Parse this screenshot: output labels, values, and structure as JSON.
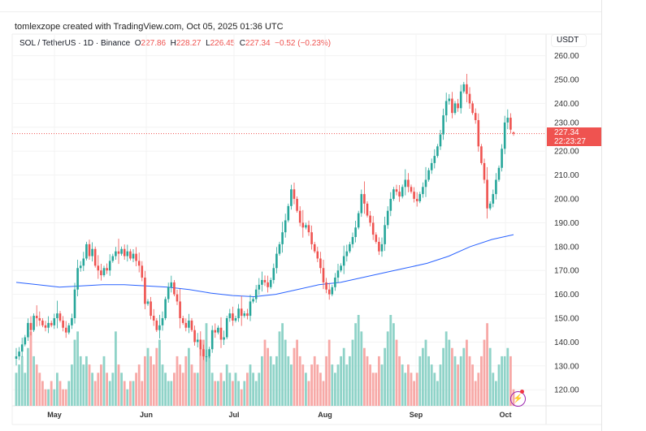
{
  "header": {
    "credit": "tomlexzope created with TradingView.com, Oct 05, 2025 01:36 UTC"
  },
  "legend": {
    "symbol": "SOL / TetherUS · 1D · Binance",
    "o_label": "O",
    "o": "227.86",
    "h_label": "H",
    "h": "228.27",
    "l_label": "L",
    "l": "226.45",
    "c_label": "C",
    "c": "227.34",
    "change": "−0.52 (−0.23%)"
  },
  "price_axis": {
    "currency": "USDT",
    "ticks": [
      "120.00",
      "130.00",
      "140.00",
      "150.00",
      "160.00",
      "170.00",
      "180.00",
      "190.00",
      "200.00",
      "210.00",
      "220.00",
      "230.00",
      "240.00",
      "250.00",
      "260.00"
    ],
    "last_price": "227.34",
    "countdown": "22:23:27"
  },
  "colors": {
    "up": "#26a69a",
    "down": "#ef5350",
    "up_volume": "#8fd3c8",
    "down_volume": "#f7a9a7",
    "ma": "#2962ff",
    "price_line": "#ef5350",
    "bolt": "#9c27b0"
  },
  "icons": {
    "bolt": "lightning-bolt-icon"
  },
  "chart_data": {
    "type": "candlestick",
    "title": "SOL / TetherUS · 1D · Binance",
    "ylim": [
      115,
      262
    ],
    "grid": true,
    "month_labels": [
      "May",
      "Jun",
      "Jul",
      "Aug",
      "Sep",
      "Oct"
    ],
    "closes": [
      134,
      136,
      139,
      142,
      148,
      145,
      151,
      150,
      149,
      147,
      146,
      148,
      147,
      150,
      152,
      149,
      146,
      144,
      147,
      150,
      162,
      171,
      172,
      175,
      181,
      176,
      179,
      172,
      170,
      168,
      171,
      170,
      174,
      176,
      178,
      177,
      179,
      176,
      178,
      175,
      177,
      174,
      172,
      167,
      156,
      157,
      151,
      149,
      145,
      147,
      150,
      158,
      163,
      165,
      160,
      157,
      150,
      148,
      146,
      149,
      145,
      140,
      141,
      137,
      134,
      134,
      137,
      145,
      144,
      146,
      141,
      142,
      150,
      152,
      149,
      150,
      154,
      151,
      152,
      151,
      157,
      158,
      162,
      164,
      166,
      165,
      163,
      166,
      171,
      177,
      181,
      186,
      191,
      197,
      204,
      200,
      195,
      190,
      188,
      189,
      186,
      181,
      178,
      175,
      171,
      165,
      162,
      160,
      163,
      167,
      170,
      172,
      176,
      178,
      181,
      184,
      188,
      194,
      202,
      198,
      193,
      190,
      185,
      182,
      178,
      181,
      189,
      195,
      200,
      204,
      203,
      201,
      205,
      208,
      205,
      203,
      200,
      199,
      202,
      205,
      208,
      212,
      215,
      218,
      222,
      227,
      235,
      241,
      242,
      236,
      240,
      238,
      245,
      248,
      244,
      240,
      236,
      233,
      222,
      215,
      208,
      196,
      198,
      202,
      208,
      213,
      221,
      232,
      234,
      229,
      227.34
    ],
    "last_open": 227.86,
    "last_high": 228.27,
    "last_low": 226.45,
    "volumes": [
      4,
      5,
      6,
      4,
      7,
      9,
      6,
      5,
      4,
      3,
      2,
      2,
      3,
      2,
      4,
      3,
      2,
      2,
      3,
      5,
      8,
      9,
      6,
      5,
      6,
      5,
      4,
      3,
      4,
      5,
      6,
      4,
      3,
      4,
      9,
      5,
      4,
      3,
      2,
      3,
      3,
      4,
      5,
      3,
      6,
      7,
      6,
      5,
      7,
      8,
      5,
      4,
      3,
      3,
      4,
      6,
      5,
      4,
      6,
      7,
      5,
      4,
      4,
      7,
      8,
      10,
      6,
      4,
      3,
      3,
      4,
      3,
      5,
      4,
      3,
      4,
      3,
      2,
      3,
      4,
      5,
      4,
      3,
      4,
      6,
      8,
      7,
      6,
      5,
      6,
      9,
      10,
      8,
      6,
      5,
      7,
      8,
      6,
      5,
      4,
      3,
      5,
      6,
      5,
      4,
      3,
      6,
      8,
      5,
      4,
      5,
      6,
      7,
      5,
      6,
      8,
      10,
      11,
      9,
      7,
      6,
      5,
      4,
      4,
      6,
      5,
      7,
      9,
      11,
      10,
      8,
      6,
      5,
      4,
      5,
      4,
      3,
      4,
      6,
      7,
      8,
      6,
      5,
      4,
      3,
      5,
      7,
      9,
      8,
      7,
      6,
      5,
      6,
      7,
      8,
      6,
      5,
      3,
      4,
      6,
      8,
      10,
      7,
      4,
      3,
      5,
      6,
      6,
      7,
      6,
      2
    ],
    "moving_average": [
      165,
      164,
      163,
      163.5,
      164,
      164,
      163.5,
      163,
      162,
      160.5,
      159.5,
      159,
      160,
      162,
      164,
      165,
      167,
      169,
      171,
      173,
      176,
      180,
      183,
      185
    ]
  }
}
